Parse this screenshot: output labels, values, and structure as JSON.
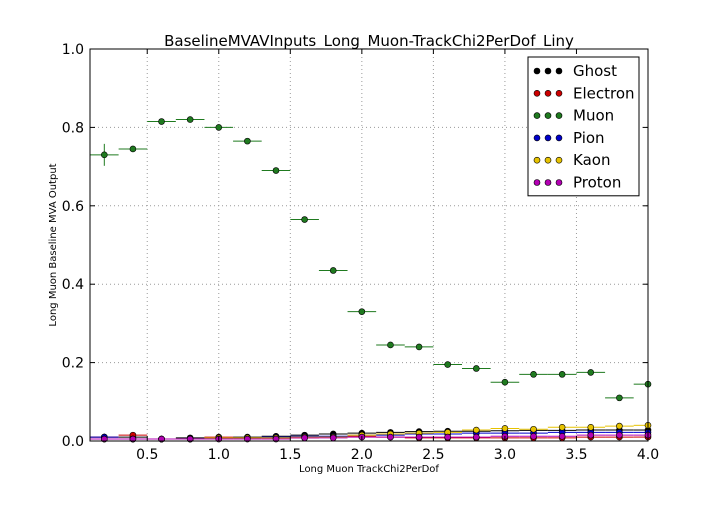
{
  "chart_data": {
    "type": "scatter",
    "title": "BaselineMVAVInputs_Long_Muon-TrackChi2PerDof_Liny",
    "xlabel": "Long Muon TrackChi2PerDof",
    "ylabel": "Long Muon Baseline MVA Output",
    "xlim": [
      0.1,
      4.0
    ],
    "ylim": [
      0.0,
      1.0
    ],
    "x_ticks": [
      "0.5",
      "1.0",
      "1.5",
      "2.0",
      "2.5",
      "3.0",
      "3.5",
      "4.0"
    ],
    "x_tick_values": [
      0.5,
      1.0,
      1.5,
      2.0,
      2.5,
      3.0,
      3.5,
      4.0
    ],
    "y_ticks": [
      "0.0",
      "0.2",
      "0.4",
      "0.6",
      "0.8",
      "1.0"
    ],
    "y_tick_values": [
      0.0,
      0.2,
      0.4,
      0.6,
      0.8,
      1.0
    ],
    "grid": true,
    "legend_position": "top-right",
    "x": [
      0.2,
      0.4,
      0.6,
      0.8,
      1.0,
      1.2,
      1.4,
      1.6,
      1.8,
      2.0,
      2.2,
      2.4,
      2.6,
      2.8,
      3.0,
      3.2,
      3.4,
      3.6,
      3.8,
      4.0
    ],
    "x_bin_half_width": 0.1,
    "series": [
      {
        "name": "Ghost",
        "color": "#000000",
        "values": [
          0.01,
          0.01,
          0.005,
          0.008,
          0.008,
          0.01,
          0.012,
          0.015,
          0.018,
          0.02,
          0.022,
          0.024,
          0.025,
          0.025,
          0.026,
          0.027,
          0.027,
          0.028,
          0.028,
          0.028
        ],
        "errors": [
          0.003,
          0.003,
          0.002,
          0.002,
          0.002,
          0.002,
          0.002,
          0.002,
          0.002,
          0.002,
          0.002,
          0.002,
          0.002,
          0.002,
          0.002,
          0.002,
          0.002,
          0.002,
          0.002,
          0.002
        ]
      },
      {
        "name": "Electron",
        "color": "#cc0000",
        "values": [
          0.01,
          0.015,
          0.005,
          0.005,
          0.01,
          0.008,
          0.008,
          0.008,
          0.01,
          0.012,
          0.01,
          0.008,
          0.008,
          0.008,
          0.008,
          0.008,
          0.008,
          0.01,
          0.01,
          0.01
        ],
        "errors": [
          0.005,
          0.006,
          0.003,
          0.003,
          0.003,
          0.003,
          0.003,
          0.003,
          0.003,
          0.003,
          0.003,
          0.003,
          0.003,
          0.003,
          0.003,
          0.003,
          0.003,
          0.003,
          0.003,
          0.003
        ]
      },
      {
        "name": "Muon",
        "color": "#1f7a1f",
        "values": [
          0.73,
          0.745,
          0.815,
          0.82,
          0.8,
          0.765,
          0.69,
          0.565,
          0.435,
          0.33,
          0.245,
          0.24,
          0.195,
          0.185,
          0.15,
          0.17,
          0.17,
          0.175,
          0.11,
          0.145
        ],
        "errors": [
          0.028,
          0.007,
          0.004,
          0.004,
          0.004,
          0.004,
          0.004,
          0.004,
          0.004,
          0.004,
          0.004,
          0.004,
          0.004,
          0.004,
          0.004,
          0.004,
          0.004,
          0.004,
          0.004,
          0.004
        ]
      },
      {
        "name": "Pion",
        "color": "#0000cc",
        "values": [
          0.01,
          0.005,
          0.005,
          0.005,
          0.008,
          0.008,
          0.01,
          0.012,
          0.012,
          0.015,
          0.015,
          0.018,
          0.018,
          0.02,
          0.02,
          0.02,
          0.022,
          0.022,
          0.022,
          0.022
        ],
        "errors": [
          0.002,
          0.002,
          0.002,
          0.002,
          0.002,
          0.002,
          0.002,
          0.002,
          0.002,
          0.002,
          0.002,
          0.002,
          0.002,
          0.002,
          0.002,
          0.002,
          0.002,
          0.002,
          0.002,
          0.002
        ]
      },
      {
        "name": "Kaon",
        "color": "#e6c200",
        "values": [
          0.005,
          0.005,
          0.005,
          0.005,
          0.008,
          0.008,
          0.008,
          0.01,
          0.01,
          0.015,
          0.018,
          0.02,
          0.022,
          0.028,
          0.032,
          0.03,
          0.035,
          0.035,
          0.038,
          0.04
        ],
        "errors": [
          0.002,
          0.002,
          0.002,
          0.002,
          0.002,
          0.002,
          0.002,
          0.002,
          0.002,
          0.002,
          0.002,
          0.002,
          0.002,
          0.002,
          0.002,
          0.002,
          0.002,
          0.002,
          0.002,
          0.002
        ]
      },
      {
        "name": "Proton",
        "color": "#b300b3",
        "values": [
          0.005,
          0.005,
          0.005,
          0.005,
          0.005,
          0.005,
          0.005,
          0.008,
          0.008,
          0.01,
          0.01,
          0.01,
          0.01,
          0.01,
          0.012,
          0.012,
          0.012,
          0.015,
          0.015,
          0.015
        ],
        "errors": [
          0.002,
          0.002,
          0.002,
          0.002,
          0.002,
          0.002,
          0.002,
          0.002,
          0.002,
          0.002,
          0.002,
          0.002,
          0.002,
          0.002,
          0.002,
          0.002,
          0.002,
          0.002,
          0.002,
          0.002
        ]
      }
    ]
  }
}
